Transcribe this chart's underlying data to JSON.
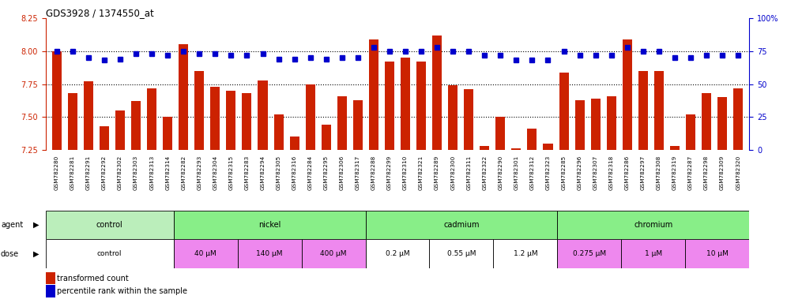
{
  "title": "GDS3928 / 1374550_at",
  "samples": [
    "GSM782280",
    "GSM782281",
    "GSM782291",
    "GSM782292",
    "GSM782302",
    "GSM782303",
    "GSM782313",
    "GSM782314",
    "GSM782282",
    "GSM782293",
    "GSM782304",
    "GSM782315",
    "GSM782283",
    "GSM782294",
    "GSM782305",
    "GSM782316",
    "GSM782284",
    "GSM782295",
    "GSM782306",
    "GSM782317",
    "GSM782288",
    "GSM782299",
    "GSM782310",
    "GSM782321",
    "GSM782289",
    "GSM782300",
    "GSM782311",
    "GSM782322",
    "GSM782290",
    "GSM782301",
    "GSM782312",
    "GSM782323",
    "GSM782285",
    "GSM782296",
    "GSM782307",
    "GSM782318",
    "GSM782286",
    "GSM782297",
    "GSM782308",
    "GSM782319",
    "GSM782287",
    "GSM782298",
    "GSM782309",
    "GSM782320"
  ],
  "bar_values": [
    8.0,
    7.68,
    7.77,
    7.43,
    7.55,
    7.62,
    7.72,
    7.5,
    8.05,
    7.85,
    7.73,
    7.7,
    7.68,
    7.78,
    7.52,
    7.35,
    7.75,
    7.44,
    7.66,
    7.63,
    8.09,
    7.92,
    7.95,
    7.92,
    8.12,
    7.74,
    7.71,
    7.28,
    7.5,
    7.26,
    7.41,
    7.3,
    7.84,
    7.63,
    7.64,
    7.66,
    8.09,
    7.85,
    7.85,
    7.28,
    7.52,
    7.68,
    7.65,
    7.72
  ],
  "percentile_values": [
    75,
    75,
    70,
    68,
    69,
    73,
    73,
    72,
    75,
    73,
    73,
    72,
    72,
    73,
    69,
    69,
    70,
    69,
    70,
    70,
    78,
    75,
    75,
    75,
    78,
    75,
    75,
    72,
    72,
    68,
    68,
    68,
    75,
    72,
    72,
    72,
    78,
    75,
    75,
    70,
    70,
    72,
    72,
    72
  ],
  "ylim_left": [
    7.25,
    8.25
  ],
  "ylim_right": [
    0,
    100
  ],
  "yticks_left": [
    7.25,
    7.5,
    7.75,
    8.0,
    8.25
  ],
  "yticks_right": [
    0,
    25,
    50,
    75,
    100
  ],
  "bar_color": "#cc2200",
  "percentile_color": "#0000cc",
  "background_color": "#ffffff",
  "agent_groups": [
    {
      "label": "control",
      "start": 0,
      "end": 8,
      "color": "#bbeebb"
    },
    {
      "label": "nickel",
      "start": 8,
      "end": 20,
      "color": "#88ee88"
    },
    {
      "label": "cadmium",
      "start": 20,
      "end": 32,
      "color": "#88ee88"
    },
    {
      "label": "chromium",
      "start": 32,
      "end": 44,
      "color": "#88ee88"
    }
  ],
  "dose_groups": [
    {
      "label": "control",
      "start": 0,
      "end": 8,
      "color": "#ffffff"
    },
    {
      "label": "40 μM",
      "start": 8,
      "end": 12,
      "color": "#ee88ee"
    },
    {
      "label": "140 μM",
      "start": 12,
      "end": 16,
      "color": "#ee88ee"
    },
    {
      "label": "400 μM",
      "start": 16,
      "end": 20,
      "color": "#ee88ee"
    },
    {
      "label": "0.2 μM",
      "start": 20,
      "end": 24,
      "color": "#ffffff"
    },
    {
      "label": "0.55 μM",
      "start": 24,
      "end": 28,
      "color": "#ffffff"
    },
    {
      "label": "1.2 μM",
      "start": 28,
      "end": 32,
      "color": "#ffffff"
    },
    {
      "label": "0.275 μM",
      "start": 32,
      "end": 36,
      "color": "#ee88ee"
    },
    {
      "label": "1 μM",
      "start": 36,
      "end": 40,
      "color": "#ee88ee"
    },
    {
      "label": "10 μM",
      "start": 40,
      "end": 44,
      "color": "#ee88ee"
    }
  ],
  "legend_items": [
    {
      "label": "transformed count",
      "color": "#cc2200"
    },
    {
      "label": "percentile rank within the sample",
      "color": "#0000cc"
    }
  ]
}
